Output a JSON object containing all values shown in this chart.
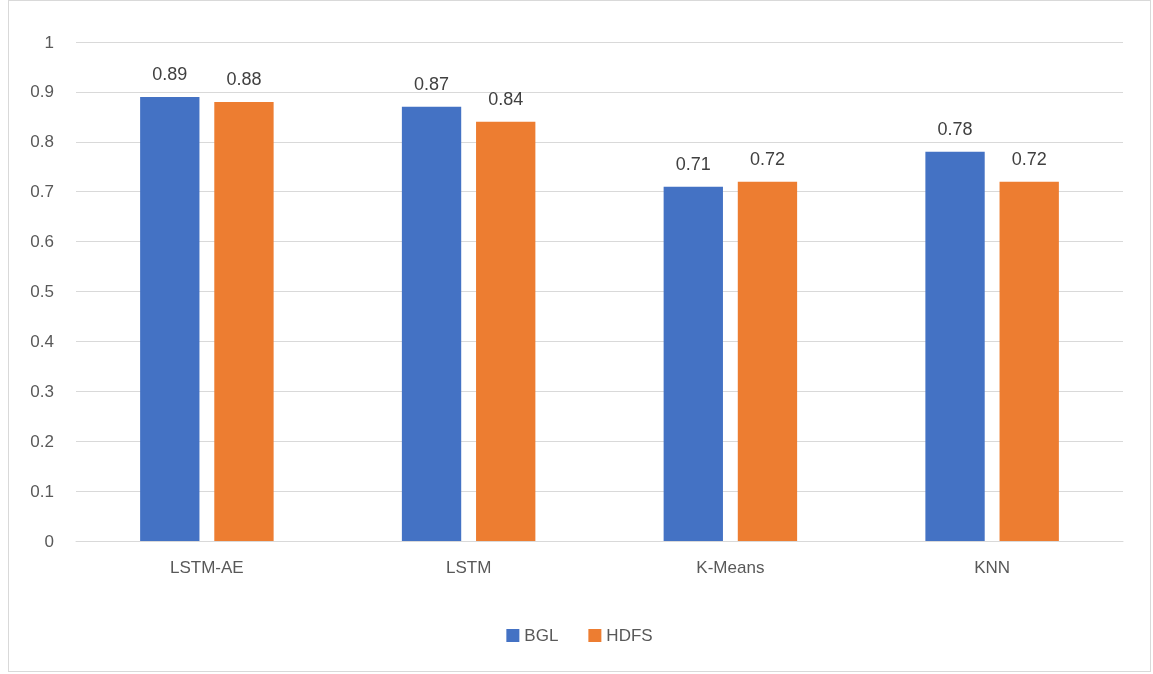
{
  "chart_data": {
    "type": "bar",
    "categories": [
      "LSTM-AE",
      "LSTM",
      "K-Means",
      "KNN"
    ],
    "series": [
      {
        "name": "BGL",
        "color": "#4472c4",
        "values": [
          0.89,
          0.87,
          0.71,
          0.78
        ]
      },
      {
        "name": "HDFS",
        "color": "#ed7d31",
        "values": [
          0.88,
          0.84,
          0.72,
          0.72
        ]
      }
    ],
    "ylim": [
      0,
      1
    ],
    "yticks": [
      0,
      0.1,
      0.2,
      0.3,
      0.4,
      0.5,
      0.6,
      0.7,
      0.8,
      0.9,
      1
    ],
    "grid": "y",
    "legend": "bottom",
    "data_labels": true
  }
}
